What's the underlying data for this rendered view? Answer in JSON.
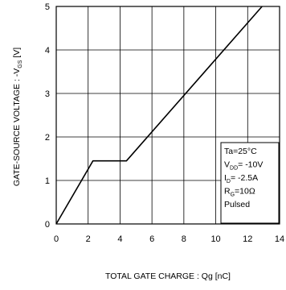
{
  "chart_data": {
    "type": "line",
    "xlabel": "TOTAL GATE CHARGE : Qg  [nC]",
    "ylabel": {
      "prefix": "GATE-SOURCE VOLTAGE : -V",
      "sub": "GS",
      "suffix": " [V]"
    },
    "xlim": [
      0,
      14
    ],
    "ylim": [
      0,
      5
    ],
    "xticks": [
      "0",
      "2",
      "4",
      "6",
      "8",
      "10",
      "12",
      "14"
    ],
    "yticks": [
      "0",
      "1",
      "2",
      "3",
      "4",
      "5"
    ],
    "grid": true,
    "series": [
      {
        "x": [
          0,
          2.3,
          4.4,
          12.9
        ],
        "y": [
          0,
          1.45,
          1.45,
          5.0
        ]
      }
    ],
    "annotation": {
      "position": "bottom-right",
      "lines": [
        {
          "text": "Ta=25°C"
        },
        {
          "prefix": "V",
          "sub": "DD",
          "suffix": "= -10V"
        },
        {
          "prefix": "I",
          "sub": "D",
          "suffix": "= -2.5A"
        },
        {
          "prefix": "R",
          "sub": "G",
          "suffix": "=10Ω"
        },
        {
          "text": "Pulsed"
        }
      ]
    }
  }
}
